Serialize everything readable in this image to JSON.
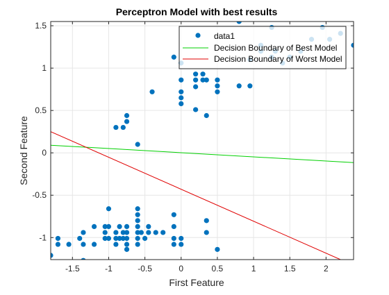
{
  "chart_data": {
    "type": "scatter",
    "title": "Perceptron Model with best results",
    "xlabel": "First Feature",
    "ylabel": "Second Feature",
    "xlim": [
      -1.8,
      2.38
    ],
    "ylim": [
      -1.26,
      1.55
    ],
    "xticks": [
      -1.5,
      -1,
      -0.5,
      0,
      0.5,
      1,
      1.5,
      2
    ],
    "xtick_labels": [
      "-1.5",
      "-1",
      "-0.5",
      "0",
      "0.5",
      "1",
      "1.5",
      "2"
    ],
    "yticks": [
      -1,
      -0.5,
      0,
      0.5,
      1,
      1.5
    ],
    "ytick_labels": [
      "-1",
      "-0.5",
      "0",
      "0.5",
      "1",
      "1.5"
    ],
    "grid": true,
    "legend_position": "top-right",
    "colors": {
      "points": "#0072BD",
      "best": "#00D000",
      "worst": "#E00000",
      "axes": "#262626",
      "grid": "#E6E6E6"
    },
    "series": [
      {
        "name": "data1",
        "kind": "scatter",
        "points": [
          [
            -1.8,
            -1.21
          ],
          [
            -1.7,
            -1.01
          ],
          [
            -1.7,
            -1.08
          ],
          [
            -1.55,
            -1.08
          ],
          [
            -1.4,
            -1.01
          ],
          [
            -1.35,
            -0.94
          ],
          [
            -1.35,
            -1.08
          ],
          [
            -1.35,
            -1.27
          ],
          [
            -1.2,
            -0.87
          ],
          [
            -1.2,
            -1.08
          ],
          [
            -1.05,
            -0.87
          ],
          [
            -1.05,
            -0.94
          ],
          [
            -1.05,
            -1.01
          ],
          [
            -1.0,
            -0.66
          ],
          [
            -1.0,
            -0.87
          ],
          [
            -1.0,
            -1.01
          ],
          [
            -0.9,
            -0.94
          ],
          [
            -0.9,
            -1.01
          ],
          [
            -0.9,
            -1.08
          ],
          [
            -0.85,
            -0.87
          ],
          [
            -0.85,
            -1.01
          ],
          [
            -0.8,
            -0.94
          ],
          [
            -0.8,
            -1.01
          ],
          [
            -0.75,
            -0.87
          ],
          [
            -0.75,
            -0.94
          ],
          [
            -0.75,
            -1.01
          ],
          [
            -0.75,
            -1.08
          ],
          [
            -0.75,
            -1.14
          ],
          [
            -0.6,
            -0.66
          ],
          [
            -0.6,
            -0.73
          ],
          [
            -0.6,
            -0.8
          ],
          [
            -0.6,
            -0.87
          ],
          [
            -0.6,
            -0.94
          ],
          [
            -0.6,
            -1.01
          ],
          [
            -0.6,
            -1.08
          ],
          [
            -0.55,
            -0.94
          ],
          [
            -0.5,
            -1.01
          ],
          [
            -0.45,
            -0.87
          ],
          [
            -0.45,
            -0.94
          ],
          [
            -0.35,
            -0.94
          ],
          [
            -0.25,
            -0.94
          ],
          [
            -0.1,
            -0.73
          ],
          [
            -0.1,
            -0.87
          ],
          [
            -0.1,
            -1.01
          ],
          [
            -0.1,
            -1.08
          ],
          [
            0.0,
            -1.01
          ],
          [
            0.0,
            -1.08
          ],
          [
            0.35,
            -0.8
          ],
          [
            0.35,
            -0.94
          ],
          [
            0.5,
            -1.14
          ],
          [
            -0.9,
            0.3
          ],
          [
            -0.8,
            0.3
          ],
          [
            -0.75,
            0.37
          ],
          [
            -0.75,
            0.44
          ],
          [
            -0.6,
            0.1
          ],
          [
            -0.4,
            0.72
          ],
          [
            -0.1,
            1.13
          ],
          [
            0.0,
            0.58
          ],
          [
            0.0,
            0.65
          ],
          [
            0.0,
            0.72
          ],
          [
            0.0,
            0.86
          ],
          [
            0.0,
            1.06
          ],
          [
            0.2,
            0.51
          ],
          [
            0.2,
            0.78
          ],
          [
            0.2,
            0.86
          ],
          [
            0.2,
            0.93
          ],
          [
            0.3,
            0.86
          ],
          [
            0.3,
            0.93
          ],
          [
            0.35,
            0.44
          ],
          [
            0.35,
            0.86
          ],
          [
            0.5,
            0.72
          ],
          [
            0.5,
            0.79
          ],
          [
            0.5,
            0.86
          ],
          [
            0.8,
            0.79
          ],
          [
            0.8,
            1.55
          ],
          [
            0.95,
            0.79
          ],
          [
            0.95,
            1.1
          ],
          [
            1.1,
            1.2
          ],
          [
            1.1,
            1.27
          ],
          [
            1.25,
            1.48
          ],
          [
            1.25,
            1.13
          ],
          [
            1.3,
            1.2
          ],
          [
            1.4,
            1.06
          ],
          [
            1.5,
            1.13
          ],
          [
            1.65,
            1.2
          ],
          [
            1.8,
            1.34
          ],
          [
            1.95,
            1.48
          ],
          [
            2.05,
            1.34
          ],
          [
            2.2,
            1.41
          ],
          [
            2.38,
            1.27
          ]
        ]
      },
      {
        "name": "Decision Boundary of Best Model",
        "kind": "line",
        "points": [
          [
            -1.8,
            0.09
          ],
          [
            2.38,
            -0.115
          ]
        ]
      },
      {
        "name": "Decision Boundary of Worst Model",
        "kind": "line",
        "points": [
          [
            -1.8,
            0.25
          ],
          [
            2.2,
            -1.26
          ]
        ]
      }
    ]
  }
}
